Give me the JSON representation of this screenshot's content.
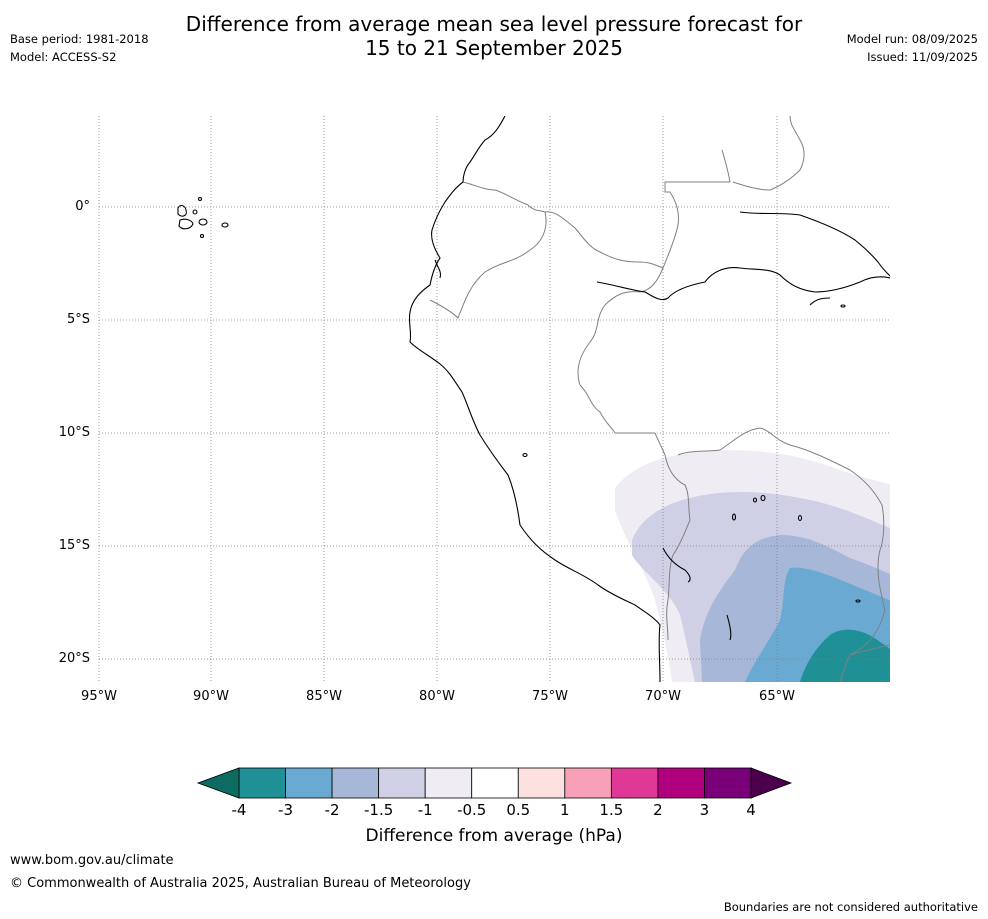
{
  "title": {
    "line1": "Difference from average mean sea level pressure forecast for",
    "line2": "15 to 21 September 2025"
  },
  "meta": {
    "base_period": "Base period: 1981-2018",
    "model": "Model: ACCESS-S2",
    "model_run": "Model run: 08/09/2025",
    "issued": "Issued: 11/09/2025"
  },
  "map": {
    "lat_labels": [
      "0°",
      "5°S",
      "10°S",
      "15°S",
      "20°S"
    ],
    "lon_labels": [
      "95°W",
      "90°W",
      "85°W",
      "80°W",
      "75°W",
      "70°W",
      "65°W"
    ]
  },
  "colorbar": {
    "ticks": [
      "-4",
      "-3",
      "-2",
      "-1.5",
      "-1",
      "-0.5",
      "0.5",
      "1",
      "1.5",
      "2",
      "3",
      "4"
    ],
    "colors": [
      "#1e9096",
      "#6aaad2",
      "#a6b7d8",
      "#cfd0e6",
      "#efecf4",
      "#ffffff",
      "#fde0e0",
      "#f8a0b8",
      "#df3897",
      "#b1007d",
      "#7a0079"
    ],
    "under_color": "#0d6b61",
    "over_color": "#4a004c",
    "label": "Difference from average (hPa)"
  },
  "footer": {
    "url": "www.bom.gov.au/climate",
    "copyright": "© Commonwealth of Australia 2025, Australian Bureau of Meteorology",
    "disclaimer": "Boundaries are not considered authoritative"
  }
}
